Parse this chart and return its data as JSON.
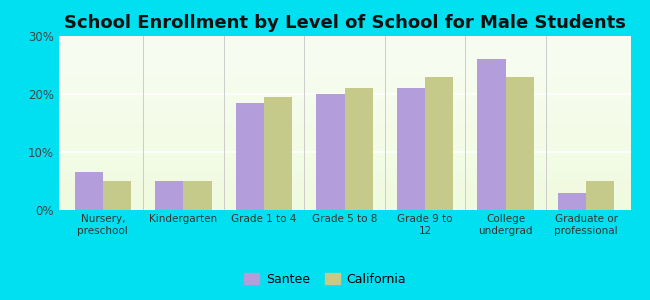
{
  "title": "School Enrollment by Level of School for Male Students",
  "categories": [
    "Nursery,\npreschool",
    "Kindergarten",
    "Grade 1 to 4",
    "Grade 5 to 8",
    "Grade 9 to\n12",
    "College\nundergrad",
    "Graduate or\nprofessional"
  ],
  "santee": [
    6.5,
    5.0,
    18.5,
    20.0,
    21.0,
    26.0,
    3.0
  ],
  "california": [
    5.0,
    5.0,
    19.5,
    21.0,
    23.0,
    23.0,
    5.0
  ],
  "santee_color": "#b39ddb",
  "california_color": "#c5c98a",
  "background_outer": "#00e0f0",
  "ylim": [
    0,
    30
  ],
  "yticks": [
    0,
    10,
    20,
    30
  ],
  "ytick_labels": [
    "0%",
    "10%",
    "20%",
    "30%"
  ],
  "title_fontsize": 13,
  "legend_labels": [
    "Santee",
    "California"
  ],
  "bar_width": 0.35
}
